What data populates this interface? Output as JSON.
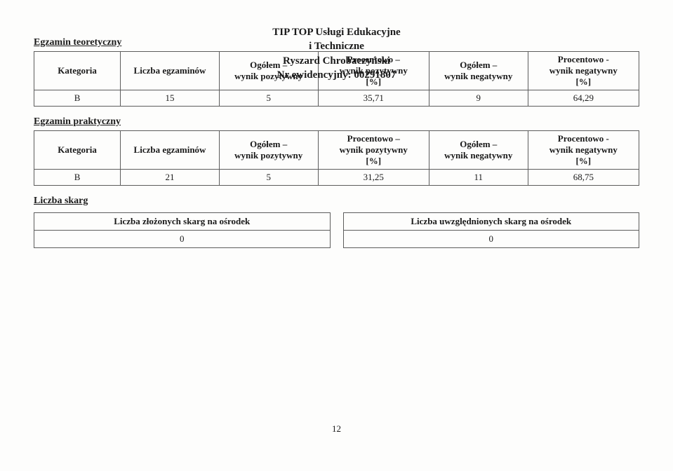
{
  "header": {
    "line1": "TIP TOP Usługi Edukacyjne",
    "line2": "i Techniczne",
    "line3": "Ryszard Chrobaczyński",
    "line4": "Nr ewidencyjny: 00291807"
  },
  "sections": {
    "teoretyczny": {
      "title": "Egzamin teoretyczny",
      "columns": {
        "kategoria": "Kategoria",
        "liczba": "Liczba egzaminów",
        "pos_n": "Ogółem –\nwynik pozytywny",
        "pos_p": "Procentowo –\nwynik pozytywny\n[%]",
        "neg_n": "Ogółem –\nwynik negatywny",
        "neg_p": "Procentowo -\nwynik negatywny\n[%]"
      },
      "row": {
        "kategoria": "B",
        "liczba": "15",
        "pos_n": "5",
        "pos_p": "35,71",
        "neg_n": "9",
        "neg_p": "64,29"
      }
    },
    "praktyczny": {
      "title": "Egzamin praktyczny",
      "columns": {
        "kategoria": "Kategoria",
        "liczba": "Liczba egzaminów",
        "pos_n": "Ogółem –\nwynik pozytywny",
        "pos_p": "Procentowo –\nwynik pozytywny\n[%]",
        "neg_n": "Ogółem –\nwynik negatywny",
        "neg_p": "Procentowo -\nwynik negatywny\n[%]"
      },
      "row": {
        "kategoria": "B",
        "liczba": "21",
        "pos_n": "5",
        "pos_p": "31,25",
        "neg_n": "11",
        "neg_p": "68,75"
      }
    },
    "skarg": {
      "title": "Liczba skarg",
      "left_header": "Liczba złożonych skarg na ośrodek",
      "right_header": "Liczba uwzględnionych skarg na ośrodek",
      "left_value": "0",
      "right_value": "0"
    }
  },
  "page_number": "12",
  "style": {
    "background": "#fdfdfc",
    "border_color": "#5c5c5c",
    "text_color": "#1a1a1a",
    "font_family": "Times New Roman",
    "header_fontsize_pt": 11,
    "body_fontsize_pt": 10
  }
}
